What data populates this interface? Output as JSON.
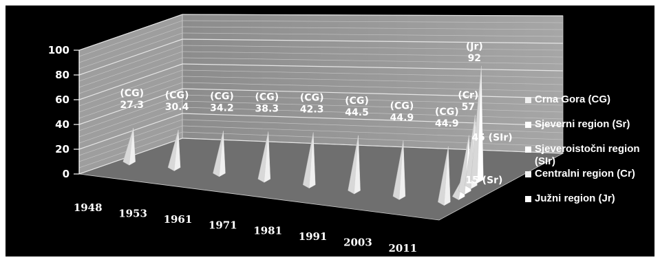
{
  "chart_data": {
    "type": "bar",
    "style": "3d-pyramid",
    "categories": [
      "1948",
      "1953",
      "1961",
      "1971",
      "1981",
      "1991",
      "2003",
      "2011"
    ],
    "series": [
      {
        "name": "Crna Gora (CG)",
        "color": "#f0f0f0",
        "values": [
          27.3,
          30.4,
          34.2,
          38.3,
          42.3,
          44.5,
          44.9,
          44.9
        ],
        "labels": [
          "(CG)\n27.3",
          "(CG)\n30.4",
          "(CG)\n34.2",
          "(CG)\n38.3",
          "(CG)\n42.3",
          "(CG)\n44.5",
          "(CG)\n44.9",
          "(CG)\n44.9"
        ]
      },
      {
        "name": "Sjeverni region (Sr)",
        "color": "#ffffff",
        "values": [
          null,
          null,
          null,
          null,
          null,
          null,
          null,
          15
        ],
        "labels": [
          "",
          "",
          "",
          "",
          "",
          "",
          "",
          "15 (Sr)"
        ]
      },
      {
        "name": "Sjeveroistočni region (SIr)",
        "color": "#ffffff",
        "values": [
          null,
          null,
          null,
          null,
          null,
          null,
          null,
          45
        ],
        "labels": [
          "",
          "",
          "",
          "",
          "",
          "",
          "",
          "45 (SIr)"
        ]
      },
      {
        "name": "Centralni region (Cr)",
        "color": "#f4f4f4",
        "values": [
          null,
          null,
          null,
          null,
          null,
          null,
          null,
          57
        ],
        "labels": [
          "",
          "",
          "",
          "",
          "",
          "",
          "",
          "(Cr)\n57"
        ]
      },
      {
        "name": "Južni region (Jr)",
        "color": "#ffffff",
        "values": [
          null,
          null,
          null,
          null,
          null,
          null,
          null,
          92
        ],
        "labels": [
          "",
          "",
          "",
          "",
          "",
          "",
          "",
          "(Jr)\n92"
        ]
      }
    ],
    "yticks": [
      "0",
      "20",
      "40",
      "60",
      "80",
      "100"
    ],
    "ylim": [
      0,
      100
    ],
    "grid": true,
    "legend": "right",
    "colors": {
      "background": "#000000",
      "wall": "#9a9a9a",
      "floor": "#6f6f6f",
      "text": "#ffffff"
    }
  }
}
